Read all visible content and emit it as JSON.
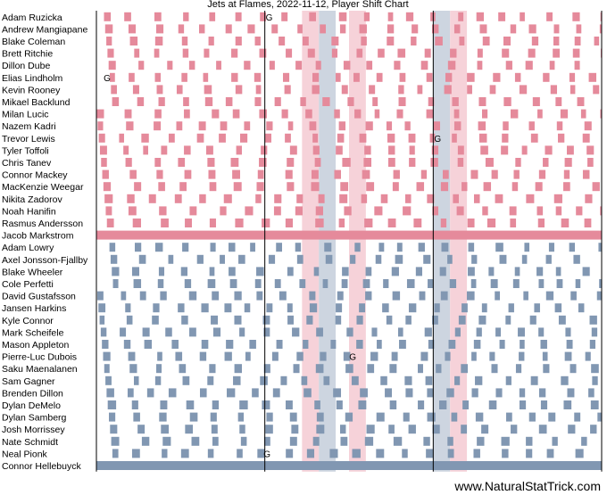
{
  "chart_data": {
    "type": "shift-chart",
    "title": "Jets at Flames, 2022-11-12, Player Shift Chart",
    "watermark": "www.NaturalStatTrick.com",
    "colors": {
      "home": "#e58a9b",
      "away": "#8197b2",
      "home_pp_band": "#f6d2d9",
      "away_pp_band": "#cdd5e0",
      "period_line": "#000000"
    },
    "game_length_sec": 3600,
    "period_lines_sec": [
      0,
      1200,
      2400,
      3600
    ],
    "goals": [
      {
        "player": "Adam Ruzicka",
        "time": 1200
      },
      {
        "player": "Elias Lindholm",
        "time": 45
      },
      {
        "player": "Trevor Lewis",
        "time": 2400
      },
      {
        "player": "Pierre-Luc Dubois",
        "time": 1795
      },
      {
        "player": "Neal Pionk",
        "time": 1185
      }
    ],
    "goal_marker": "G",
    "penalty_windows": [
      {
        "team": "home",
        "start": 1465,
        "end": 1585
      },
      {
        "team": "away",
        "start": 1585,
        "end": 1705
      },
      {
        "team": "home",
        "start": 1800,
        "end": 1920
      },
      {
        "team": "away",
        "start": 2400,
        "end": 2520
      },
      {
        "team": "home",
        "start": 2520,
        "end": 2640
      }
    ],
    "home_players": [
      {
        "name": "Adam Ruzicka"
      },
      {
        "name": "Andrew Mangiapane"
      },
      {
        "name": "Blake Coleman"
      },
      {
        "name": "Brett Ritchie"
      },
      {
        "name": "Dillon Dube"
      },
      {
        "name": "Elias Lindholm"
      },
      {
        "name": "Kevin Rooney"
      },
      {
        "name": "Mikael Backlund"
      },
      {
        "name": "Milan Lucic"
      },
      {
        "name": "Nazem Kadri"
      },
      {
        "name": "Trevor Lewis"
      },
      {
        "name": "Tyler Toffoli"
      },
      {
        "name": "Chris Tanev"
      },
      {
        "name": "Connor Mackey"
      },
      {
        "name": "MacKenzie Weegar"
      },
      {
        "name": "Nikita Zadorov"
      },
      {
        "name": "Noah Hanifin"
      },
      {
        "name": "Rasmus Andersson"
      },
      {
        "name": "Jacob Markstrom",
        "goalie": true
      }
    ],
    "away_players": [
      {
        "name": "Adam Lowry"
      },
      {
        "name": "Axel Jonsson-Fjallby"
      },
      {
        "name": "Blake Wheeler"
      },
      {
        "name": "Cole Perfetti"
      },
      {
        "name": "David Gustafsson"
      },
      {
        "name": "Jansen Harkins"
      },
      {
        "name": "Kyle Connor"
      },
      {
        "name": "Mark Scheifele"
      },
      {
        "name": "Mason Appleton"
      },
      {
        "name": "Pierre-Luc Dubois"
      },
      {
        "name": "Saku Maenalanen"
      },
      {
        "name": "Sam Gagner"
      },
      {
        "name": "Brenden Dillon"
      },
      {
        "name": "Dylan DeMelo"
      },
      {
        "name": "Dylan Samberg"
      },
      {
        "name": "Josh Morrissey"
      },
      {
        "name": "Nate Schmidt"
      },
      {
        "name": "Neal Pionk"
      },
      {
        "name": "Connor Hellebuyck",
        "goalie": true
      }
    ],
    "shift_profile": {
      "forward_shift_sec": [
        35,
        55
      ],
      "defense_shift_sec": [
        40,
        60
      ],
      "rest_sec": [
        90,
        170
      ]
    }
  }
}
